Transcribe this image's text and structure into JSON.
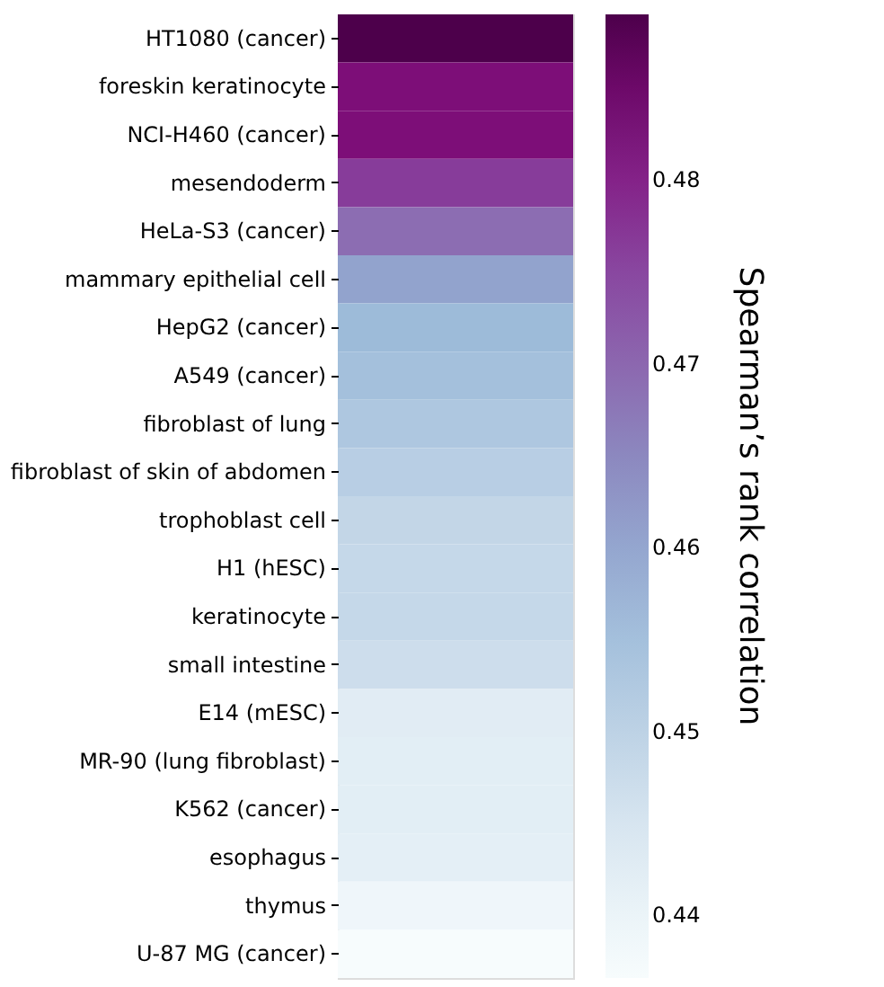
{
  "chart_data": {
    "type": "heatmap",
    "categories": [
      null
    ],
    "y_categories": [
      "HT1080 (cancer)",
      "foreskin keratinocyte",
      "NCI-H460 (cancer)",
      "mesendoderm",
      "HeLa-S3 (cancer)",
      "mammary epithelial cell",
      "HepG2 (cancer)",
      "A549 (cancer)",
      "fibroblast of lung",
      "fibroblast of skin of abdomen",
      "trophoblast cell",
      "H1 (hESC)",
      "keratinocyte",
      "small intestine",
      "E14 (mESC)",
      "MR-90 (lung fibroblast)",
      "K562 (cancer)",
      "esophagus",
      "thymus",
      "U-87 MG (cancer)"
    ],
    "cells": [
      [
        0.489
      ],
      [
        0.483
      ],
      [
        0.483
      ],
      [
        0.4765
      ],
      [
        0.469
      ],
      [
        0.4605
      ],
      [
        0.4565
      ],
      [
        0.455
      ],
      [
        0.453
      ],
      [
        0.451
      ],
      [
        0.449
      ],
      [
        0.4485
      ],
      [
        0.4485
      ],
      [
        0.447
      ],
      [
        0.443
      ],
      [
        0.4425
      ],
      [
        0.4425
      ],
      [
        0.442
      ],
      [
        0.439
      ],
      [
        0.4366
      ]
    ],
    "clim": [
      0.4366,
      0.489
    ],
    "cticks": [
      0.44,
      0.45,
      0.46,
      0.47,
      0.48
    ],
    "clabel": "Spearman’s rank correlation"
  }
}
